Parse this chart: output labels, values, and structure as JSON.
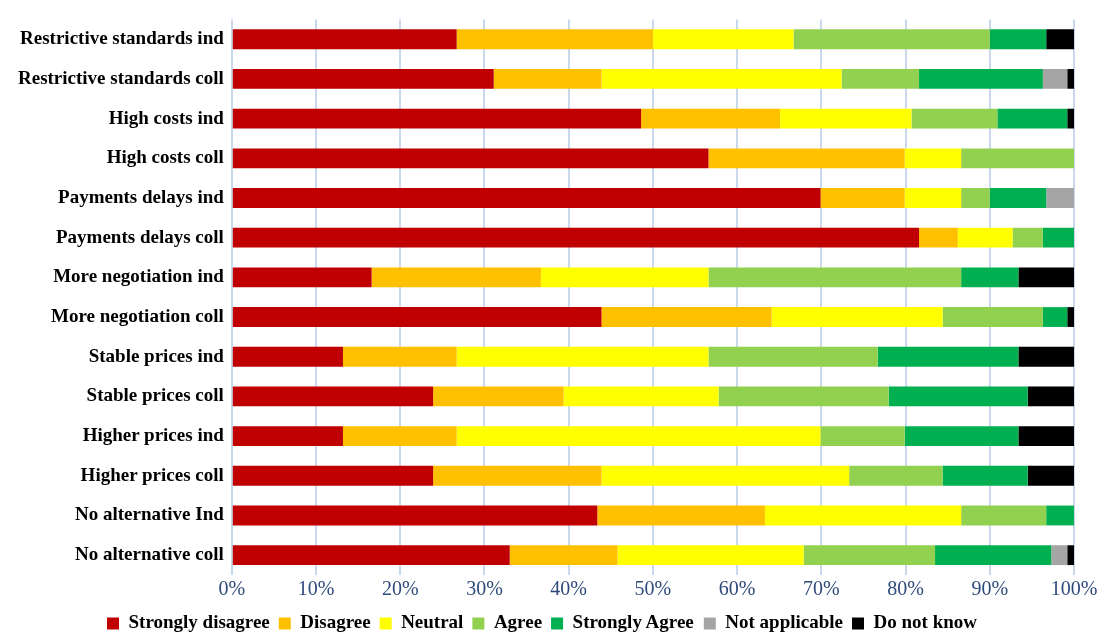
{
  "chart_data": {
    "type": "bar",
    "orientation": "horizontal",
    "stacked": true,
    "categories": [
      "Restrictive standards ind",
      "Restrictive standards coll",
      "High costs ind",
      "High costs coll",
      "Payments delays ind",
      "Payments delays coll",
      "More negotiation ind",
      "More negotiation coll",
      "Stable prices ind",
      "Stable prices coll",
      "Higher prices ind",
      "Higher prices coll",
      "No alternative Ind",
      "No alternative coll"
    ],
    "series": [
      {
        "name": "Strongly disagree",
        "color": "#c00000",
        "values": [
          26.7,
          31.1,
          48.6,
          56.6,
          69.9,
          81.6,
          16.6,
          43.9,
          13.2,
          23.9,
          13.2,
          23.9,
          43.4,
          33.0
        ]
      },
      {
        "name": "Disagree",
        "color": "#ffc000",
        "values": [
          23.3,
          12.8,
          16.5,
          23.3,
          10.0,
          4.6,
          20.1,
          20.2,
          13.5,
          15.5,
          13.5,
          20.0,
          19.9,
          12.8
        ]
      },
      {
        "name": "Neutral",
        "color": "#ffff00",
        "values": [
          16.7,
          28.5,
          15.6,
          6.7,
          6.7,
          6.5,
          19.9,
          20.3,
          29.9,
          18.4,
          43.2,
          29.4,
          23.3,
          22.1
        ]
      },
      {
        "name": "Agree",
        "color": "#92d050",
        "values": [
          23.3,
          9.2,
          10.2,
          13.4,
          3.4,
          3.6,
          30.0,
          11.9,
          20.1,
          20.2,
          10.0,
          11.1,
          10.1,
          15.6
        ]
      },
      {
        "name": "Strongly Agree",
        "color": "#00b050",
        "values": [
          6.7,
          14.7,
          8.3,
          0,
          6.7,
          3.7,
          6.8,
          2.9,
          16.7,
          16.5,
          13.5,
          10.1,
          3.3,
          13.8
        ]
      },
      {
        "name": "Not applicable",
        "color": "#a5a5a5",
        "values": [
          0,
          2.9,
          0,
          0,
          3.3,
          0,
          0,
          0,
          0,
          0,
          0,
          0,
          0,
          1.9
        ]
      },
      {
        "name": "Do not know",
        "color": "#000000",
        "values": [
          3.3,
          0.8,
          0.8,
          0,
          0,
          0,
          6.6,
          0.8,
          6.6,
          5.5,
          6.6,
          5.5,
          0,
          0.8
        ]
      }
    ],
    "xlim": [
      0,
      100
    ],
    "xticks": [
      {
        "value": 0,
        "label": "0%"
      },
      {
        "value": 10,
        "label": "10%"
      },
      {
        "value": 20,
        "label": "20%"
      },
      {
        "value": 30,
        "label": "30%"
      },
      {
        "value": 40,
        "label": "40%"
      },
      {
        "value": 50,
        "label": "50%"
      },
      {
        "value": 60,
        "label": "60%"
      },
      {
        "value": 70,
        "label": "70%"
      },
      {
        "value": 80,
        "label": "80%"
      },
      {
        "value": 90,
        "label": "90%"
      },
      {
        "value": 100,
        "label": "100%"
      }
    ],
    "grid": "x",
    "legend": "bottom"
  }
}
